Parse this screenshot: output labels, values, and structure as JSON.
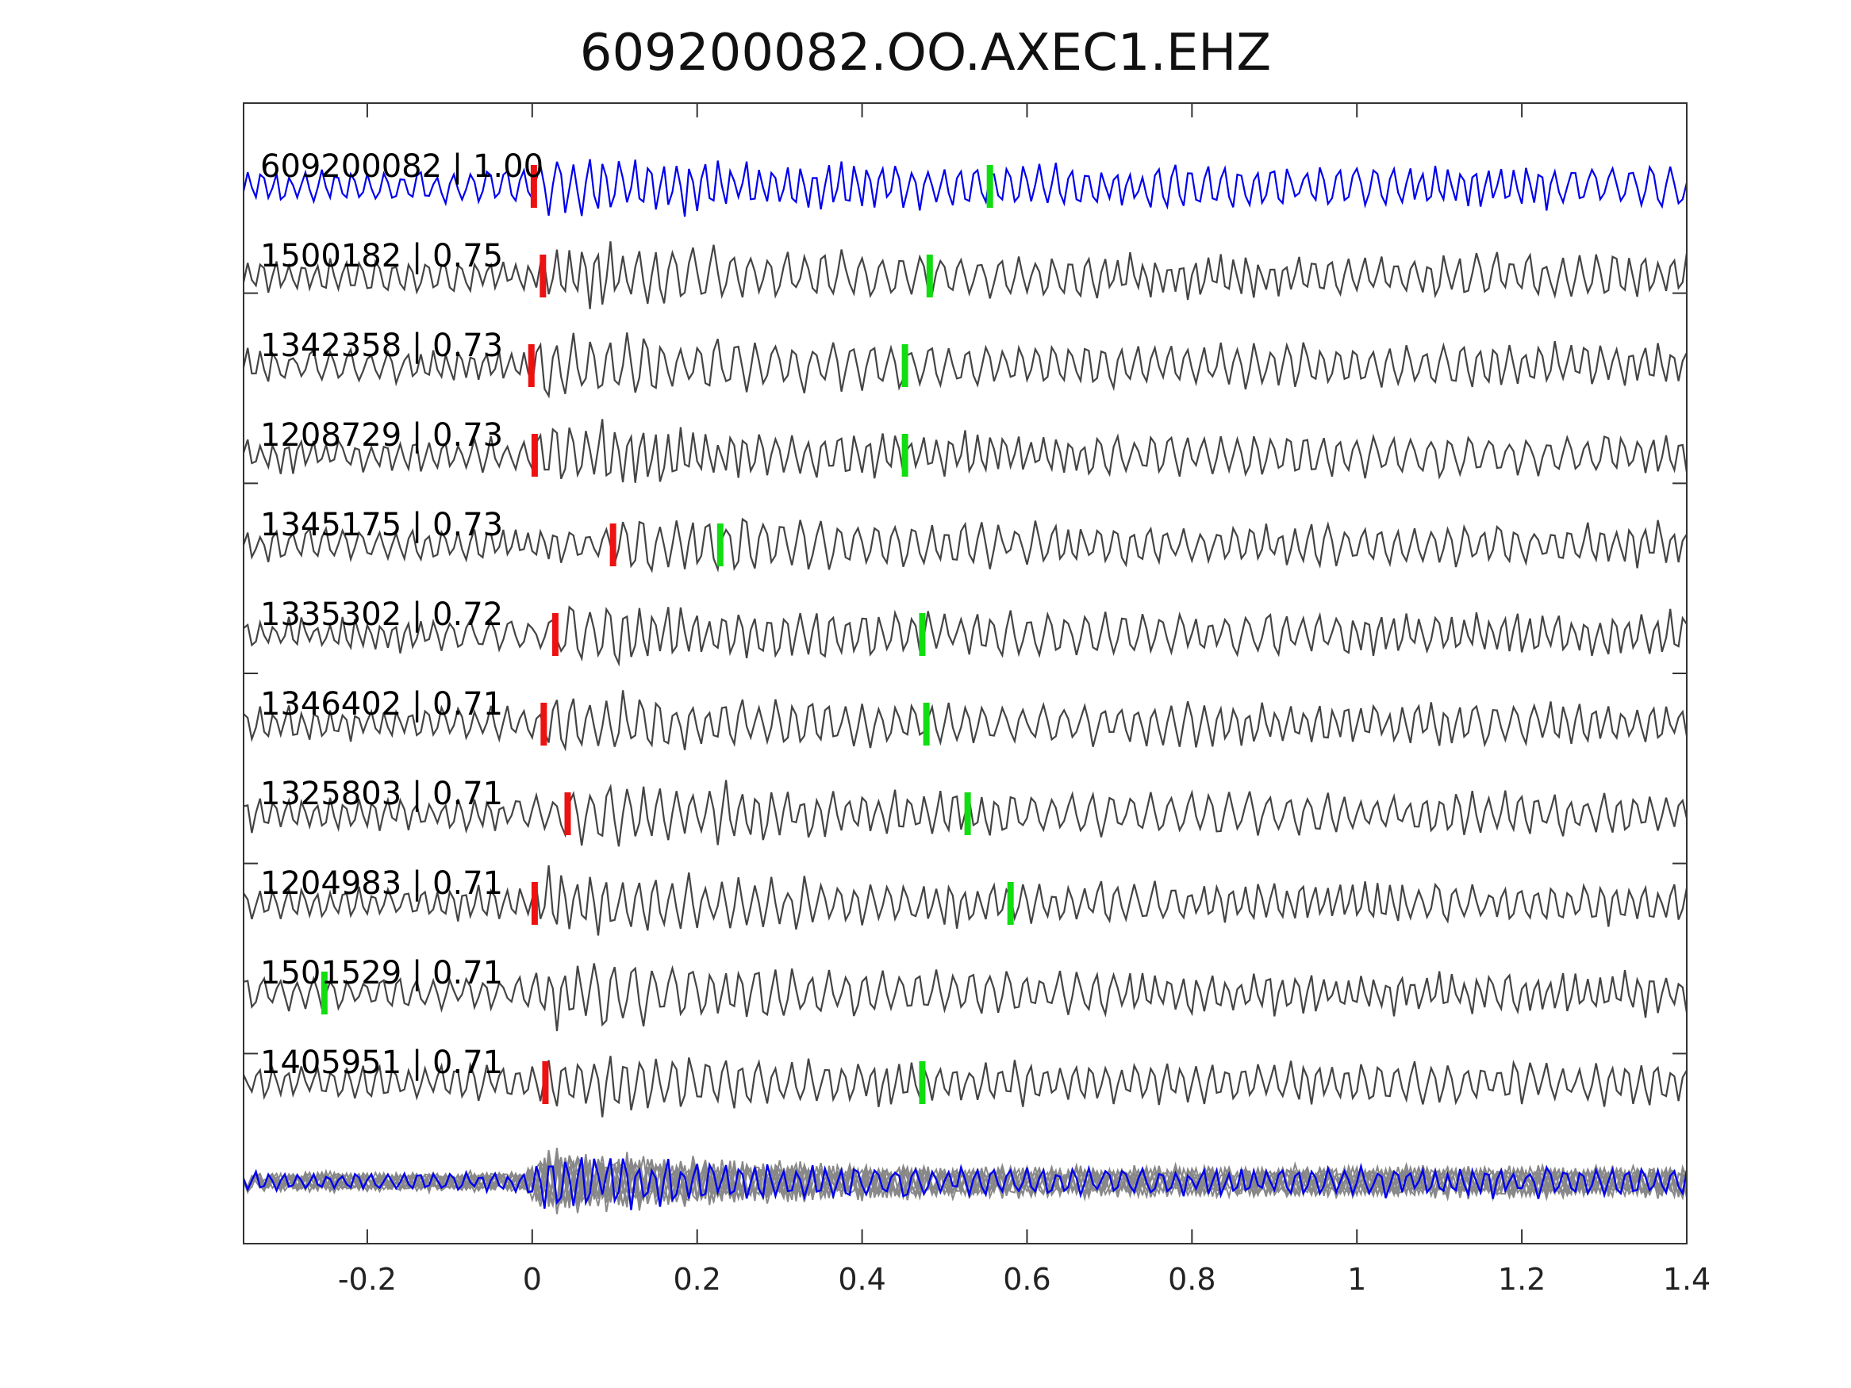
{
  "chart_data": {
    "type": "line",
    "title": "609200082.OO.AXEC1.EHZ",
    "xlabel": "",
    "ylabel": "",
    "xlim": [
      -0.35,
      1.4
    ],
    "xticks": [
      -0.2,
      0,
      0.2,
      0.4,
      0.6,
      0.8,
      1,
      1.2,
      1.4
    ],
    "xtick_labels": [
      "-0.2",
      "0",
      "0.2",
      "0.4",
      "0.6",
      "0.8",
      "1",
      "1.2",
      "1.4"
    ],
    "grid": false,
    "colors": {
      "reference": "#0000ee",
      "match": "#444444",
      "stack": "#888888",
      "p_pick": "#ee1111",
      "s_pick": "#11dd11",
      "axes": "#333333"
    },
    "series": [
      {
        "label": "609200082 | 1.00",
        "p_pick": 0.002,
        "s_pick": 0.555
      },
      {
        "label": "1500182 | 0.75",
        "p_pick": 0.013,
        "s_pick": 0.482
      },
      {
        "label": "1342358 | 0.73",
        "p_pick": -0.001,
        "s_pick": 0.452
      },
      {
        "label": "1208729 | 0.73",
        "p_pick": 0.003,
        "s_pick": 0.452
      },
      {
        "label": "1345175 | 0.73",
        "p_pick": 0.098,
        "s_pick": 0.228
      },
      {
        "label": "1335302 | 0.72",
        "p_pick": 0.028,
        "s_pick": 0.473
      },
      {
        "label": "1346402 | 0.71",
        "p_pick": 0.014,
        "s_pick": 0.478
      },
      {
        "label": "1325803 | 0.71",
        "p_pick": 0.043,
        "s_pick": 0.528
      },
      {
        "label": "1204983 | 0.71",
        "p_pick": 0.003,
        "s_pick": 0.58
      },
      {
        "label": "1501529 | 0.71",
        "p_pick": null,
        "s_pick": -0.252
      },
      {
        "label": "1405951 | 0.71",
        "p_pick": 0.016,
        "s_pick": 0.473
      }
    ]
  }
}
